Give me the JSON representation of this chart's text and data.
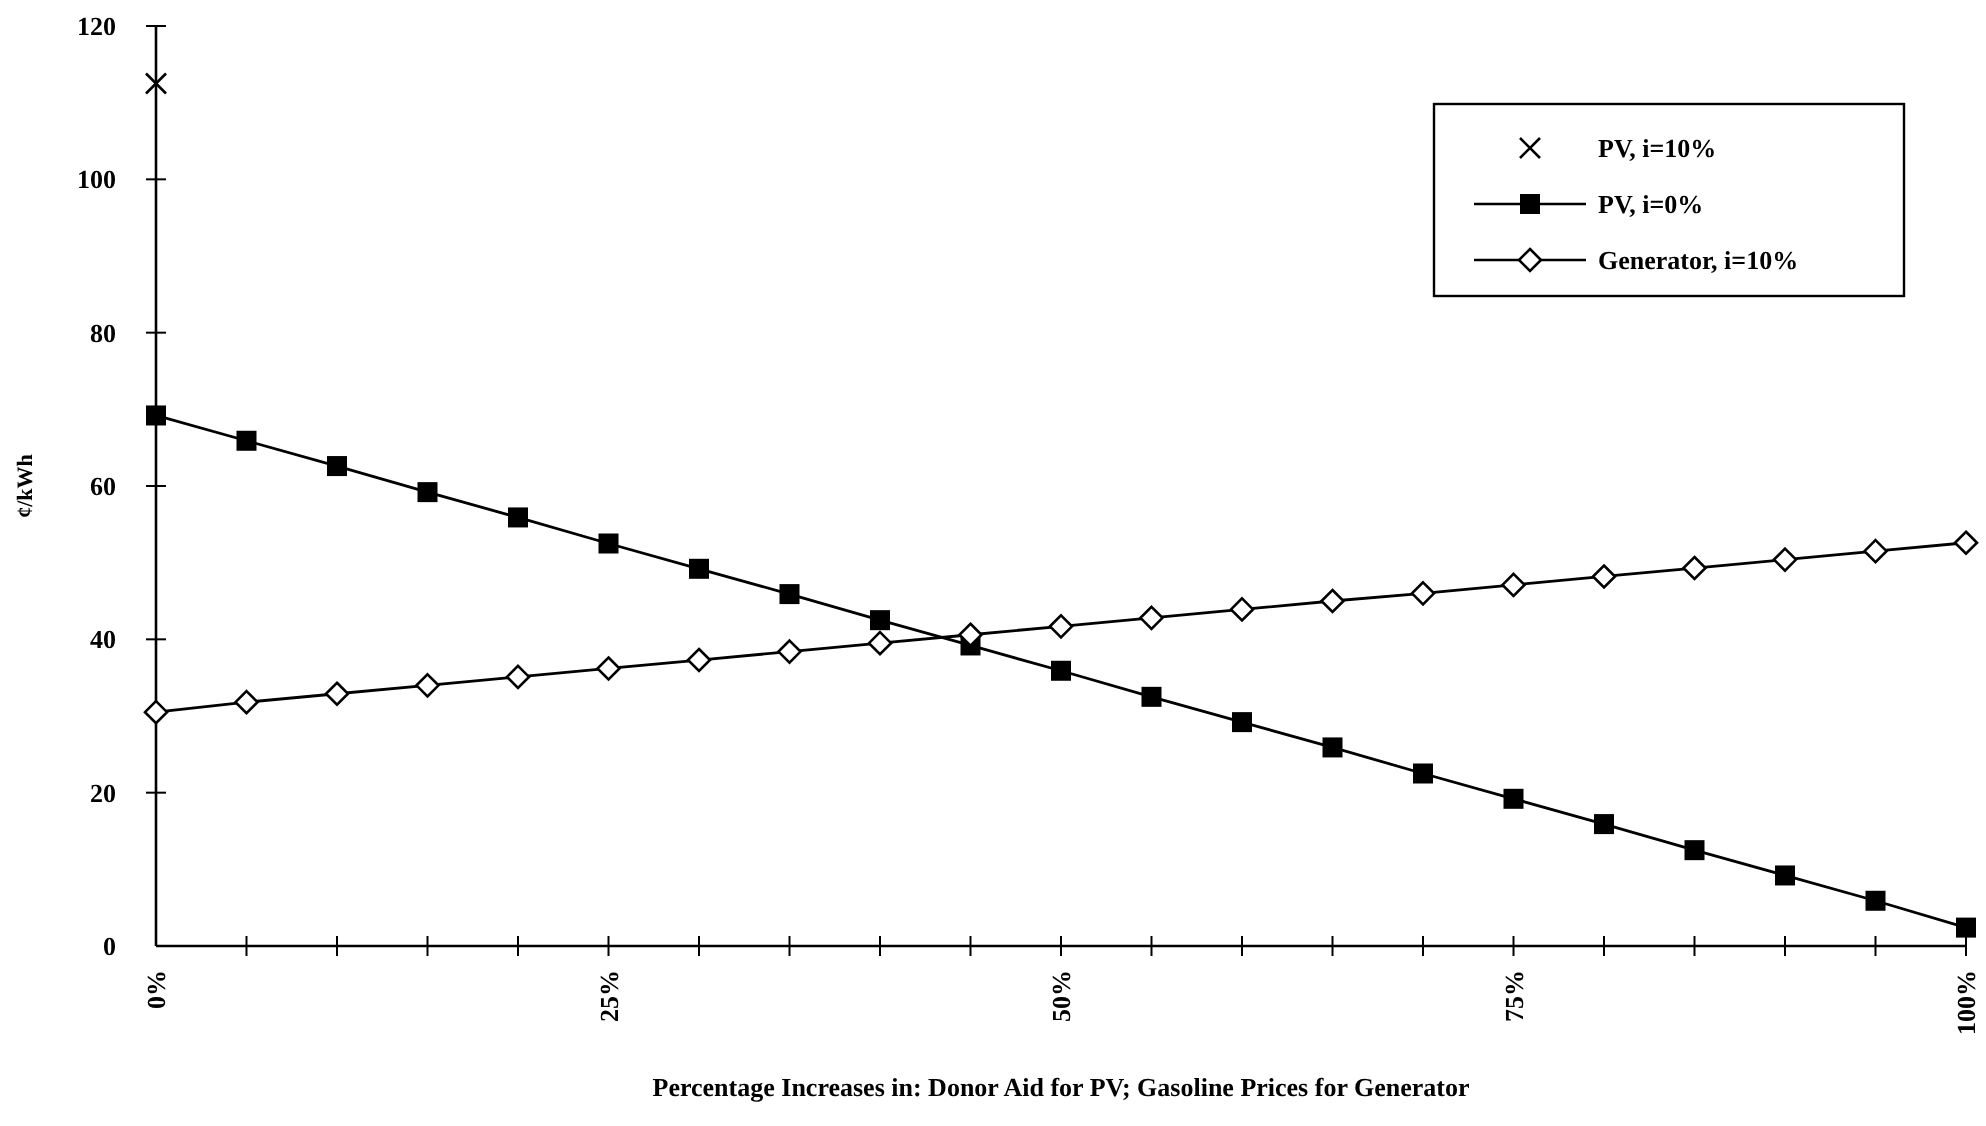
{
  "chart_data": {
    "type": "line",
    "xlabel": "Percentage Increases in:  Donor Aid for PV;  Gasoline Prices for Generator",
    "ylabel": "¢/kWh",
    "x": [
      0,
      5,
      10,
      15,
      20,
      25,
      30,
      35,
      40,
      45,
      50,
      55,
      60,
      65,
      70,
      75,
      80,
      85,
      90,
      95,
      100
    ],
    "xlim": [
      0,
      100
    ],
    "xticks": [
      {
        "value": 0,
        "label": "0%"
      },
      {
        "value": 5,
        "label": null
      },
      {
        "value": 10,
        "label": null
      },
      {
        "value": 15,
        "label": null
      },
      {
        "value": 20,
        "label": null
      },
      {
        "value": 25,
        "label": "25%"
      },
      {
        "value": 30,
        "label": null
      },
      {
        "value": 35,
        "label": null
      },
      {
        "value": 40,
        "label": null
      },
      {
        "value": 45,
        "label": null
      },
      {
        "value": 50,
        "label": "50%"
      },
      {
        "value": 55,
        "label": null
      },
      {
        "value": 60,
        "label": null
      },
      {
        "value": 65,
        "label": null
      },
      {
        "value": 70,
        "label": null
      },
      {
        "value": 75,
        "label": "75%"
      },
      {
        "value": 80,
        "label": null
      },
      {
        "value": 85,
        "label": null
      },
      {
        "value": 90,
        "label": null
      },
      {
        "value": 95,
        "label": null
      },
      {
        "value": 100,
        "label": "100%"
      }
    ],
    "ylim": [
      0,
      120
    ],
    "yticks": [
      0,
      20,
      40,
      60,
      80,
      100,
      120
    ],
    "grid": false,
    "legend": "top right",
    "series": [
      {
        "name": "PV, i=10%",
        "type": "scatter",
        "marker": "cross",
        "color": "#000000",
        "x": [
          0
        ],
        "values": [
          112.5
        ]
      },
      {
        "name": "PV, i=0%",
        "marker": "square",
        "color": "#000000",
        "values": [
          69.2,
          65.9,
          62.6,
          59.2,
          55.9,
          52.5,
          49.2,
          45.9,
          42.5,
          39.2,
          35.9,
          32.5,
          29.2,
          25.9,
          22.5,
          19.2,
          15.9,
          12.5,
          9.2,
          5.9,
          2.4
        ]
      },
      {
        "name": "Generator, i=10%",
        "marker": "diamond",
        "color": "#000000",
        "values": [
          30.5,
          31.8,
          32.9,
          34.0,
          35.1,
          36.2,
          37.3,
          38.4,
          39.5,
          40.6,
          41.7,
          42.8,
          43.9,
          45.0,
          46.0,
          47.1,
          48.2,
          49.3,
          50.4,
          51.5,
          52.6
        ]
      }
    ]
  }
}
